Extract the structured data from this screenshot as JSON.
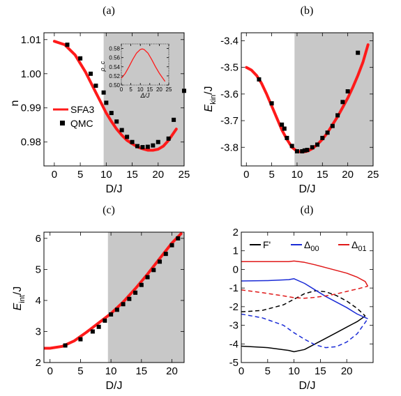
{
  "colors": {
    "sfa3": "#ff1a1a",
    "qmc": "#000000",
    "shade": "#c8c8c8",
    "F": "#000000",
    "D00": "#1a2bd6",
    "D01": "#e01818"
  },
  "chart_data": [
    {
      "panel": "(a)",
      "type": "line",
      "xlabel": "D/J",
      "ylabel": "n",
      "xlim": [
        -2,
        25
      ],
      "ylim": [
        0.973,
        1.012
      ],
      "xticks": [
        0,
        5,
        10,
        15,
        20,
        25
      ],
      "yticks": [
        0.98,
        0.99,
        1.0,
        1.01
      ],
      "ytick_labels": [
        "0.98",
        "0.99",
        "1.00",
        "1.01"
      ],
      "shaded_from_x": 9.5,
      "legend": {
        "position": "left",
        "entries": [
          "SFA3",
          "QMC"
        ]
      },
      "series": [
        {
          "name": "SFA3",
          "style": "line",
          "x": [
            0,
            2,
            4,
            6,
            8,
            9,
            10,
            11,
            12,
            13,
            14,
            15,
            16,
            17,
            18,
            19,
            20,
            21,
            22,
            23.5
          ],
          "y": [
            1.0095,
            1.0085,
            1.0055,
            1.0005,
            0.9945,
            0.9915,
            0.9885,
            0.986,
            0.9838,
            0.982,
            0.9805,
            0.9795,
            0.9786,
            0.978,
            0.9776,
            0.9776,
            0.9779,
            0.9788,
            0.9805,
            0.9838
          ]
        },
        {
          "name": "QMC",
          "style": "markers",
          "x": [
            2.5,
            5,
            7,
            8,
            9.5,
            10,
            11,
            12,
            13,
            14,
            15,
            16,
            17,
            18,
            19,
            20,
            22,
            23,
            25
          ],
          "y": [
            1.0085,
            1.0045,
            1.0,
            0.9965,
            0.9945,
            0.9915,
            0.9885,
            0.986,
            0.9835,
            0.9815,
            0.98,
            0.9788,
            0.9785,
            0.9786,
            0.979,
            0.98,
            0.981,
            0.9865,
            0.995
          ]
        }
      ],
      "inset": {
        "type": "line",
        "xlabel": "Δ/J",
        "ylabel": "ρ_c",
        "xlim": [
          0,
          25
        ],
        "ylim": [
          0.5,
          0.59
        ],
        "xticks": [
          0,
          5,
          10,
          15,
          20,
          25
        ],
        "yticks": [
          0.5,
          0.52,
          0.54,
          0.56,
          0.58
        ],
        "ytick_labels": [
          "0.50",
          "0.52",
          "0.54",
          "0.56",
          "0.58"
        ],
        "series": [
          {
            "x": [
              0,
              2,
              4,
              6,
              8,
              10,
              11,
              12,
              14,
              16,
              18,
              20,
              22,
              23
            ],
            "y": [
              0.515,
              0.525,
              0.54,
              0.556,
              0.57,
              0.578,
              0.579,
              0.578,
              0.57,
              0.556,
              0.54,
              0.526,
              0.514,
              0.508
            ]
          }
        ]
      }
    },
    {
      "panel": "(b)",
      "type": "line",
      "xlabel": "D/J",
      "ylabel_main": "E",
      "ylabel_sub": "kin",
      "ylabel_tail": "/J",
      "xlim": [
        -1,
        25
      ],
      "ylim": [
        -3.87,
        -3.37
      ],
      "xticks": [
        0,
        5,
        10,
        15,
        20,
        25
      ],
      "yticks": [
        -3.8,
        -3.7,
        -3.6,
        -3.5,
        -3.4
      ],
      "ytick_labels": [
        "-3.8",
        "-3.7",
        "-3.6",
        "-3.5",
        "-3.4"
      ],
      "shaded_from_x": 9.5,
      "series": [
        {
          "name": "SFA3",
          "style": "line",
          "x": [
            0,
            1,
            2,
            3,
            4,
            5,
            6,
            7,
            8,
            9,
            10,
            11,
            12,
            13,
            14,
            15,
            16,
            17,
            18,
            19,
            20,
            21,
            22,
            23,
            24
          ],
          "y": [
            -3.5,
            -3.51,
            -3.53,
            -3.56,
            -3.6,
            -3.645,
            -3.69,
            -3.735,
            -3.77,
            -3.8,
            -3.815,
            -3.818,
            -3.815,
            -3.805,
            -3.79,
            -3.77,
            -3.745,
            -3.715,
            -3.685,
            -3.65,
            -3.615,
            -3.575,
            -3.53,
            -3.48,
            -3.415
          ]
        },
        {
          "name": "QMC",
          "style": "markers",
          "x": [
            2.5,
            5,
            7,
            7.5,
            8,
            9,
            10,
            11,
            11.5,
            12,
            13,
            14,
            15,
            16,
            17,
            18,
            19,
            20,
            22
          ],
          "y": [
            -3.545,
            -3.635,
            -3.715,
            -3.73,
            -3.765,
            -3.795,
            -3.815,
            -3.815,
            -3.812,
            -3.81,
            -3.8,
            -3.79,
            -3.765,
            -3.745,
            -3.72,
            -3.68,
            -3.63,
            -3.59,
            -3.445
          ]
        }
      ]
    },
    {
      "panel": "(c)",
      "type": "line",
      "xlabel": "D/J",
      "ylabel_main": "E",
      "ylabel_sub": "int",
      "ylabel_tail": "/J",
      "xlim": [
        -1,
        22
      ],
      "ylim": [
        2.0,
        6.2
      ],
      "xticks": [
        0,
        5,
        10,
        15,
        20
      ],
      "yticks": [
        2,
        3,
        4,
        5,
        6
      ],
      "ytick_labels": [
        "2",
        "3",
        "4",
        "5",
        "6"
      ],
      "shaded_from_x": 9.5,
      "series": [
        {
          "name": "SFA3",
          "style": "line",
          "x": [
            -1,
            0,
            2,
            4,
            6,
            8,
            10,
            12,
            14,
            16,
            18,
            20,
            21.5
          ],
          "y": [
            2.46,
            2.46,
            2.52,
            2.7,
            2.98,
            3.28,
            3.58,
            3.95,
            4.38,
            4.85,
            5.35,
            5.85,
            6.15
          ]
        },
        {
          "name": "QMC",
          "style": "markers",
          "x": [
            2.5,
            5,
            7,
            8,
            9,
            10,
            11,
            12,
            13,
            14,
            15,
            16,
            17,
            18,
            19,
            20,
            21
          ],
          "y": [
            2.55,
            2.75,
            3.0,
            3.15,
            3.35,
            3.55,
            3.7,
            3.88,
            4.05,
            4.25,
            4.5,
            4.75,
            4.98,
            5.25,
            5.5,
            5.78,
            6.0
          ]
        }
      ]
    },
    {
      "panel": "(d)",
      "type": "line",
      "xlabel": "D/J",
      "xlim": [
        0,
        25
      ],
      "ylim": [
        -5,
        2
      ],
      "xticks": [
        0,
        5,
        10,
        15,
        20
      ],
      "yticks": [
        -5,
        -4,
        -3,
        -2,
        -1,
        0,
        1,
        2
      ],
      "ytick_labels": [
        "-5",
        "-4",
        "-3",
        "-2",
        "-1",
        "0",
        "1",
        "2"
      ],
      "legend": {
        "position": "top",
        "entries": [
          "F'",
          "Δ",
          "Δ"
        ],
        "subs": [
          "",
          "00",
          "01"
        ]
      },
      "series": [
        {
          "name": "F'",
          "branch": "solid",
          "x": [
            0,
            5,
            9,
            10,
            12,
            14,
            16,
            18,
            20,
            22,
            23.5
          ],
          "y": [
            -4.12,
            -4.2,
            -4.35,
            -4.42,
            -4.3,
            -4.0,
            -3.7,
            -3.4,
            -3.1,
            -2.8,
            -2.5
          ]
        },
        {
          "name": "F'",
          "branch": "dashed",
          "x": [
            0,
            4,
            8,
            10,
            12,
            14,
            16,
            18,
            20,
            22,
            23.5
          ],
          "y": [
            -2.28,
            -2.2,
            -1.9,
            -1.6,
            -1.3,
            -1.15,
            -1.2,
            -1.4,
            -1.7,
            -2.1,
            -2.5
          ]
        },
        {
          "name": "Δ00",
          "branch": "solid",
          "x": [
            0,
            5,
            9,
            10,
            12,
            14,
            16,
            18,
            20,
            22,
            24
          ],
          "y": [
            -0.62,
            -0.6,
            -0.55,
            -0.5,
            -0.75,
            -1.1,
            -1.45,
            -1.75,
            -2.05,
            -2.4,
            -2.65
          ]
        },
        {
          "name": "Δ00",
          "branch": "dashed",
          "x": [
            0,
            4,
            8,
            10,
            12,
            14,
            16,
            18,
            20,
            22,
            24
          ],
          "y": [
            -2.4,
            -2.6,
            -3.0,
            -3.4,
            -3.75,
            -4.05,
            -4.2,
            -4.15,
            -3.9,
            -3.45,
            -2.65
          ]
        },
        {
          "name": "Δ01",
          "branch": "solid",
          "x": [
            0,
            5,
            9,
            10,
            12,
            14,
            16,
            18,
            20,
            22,
            23.5,
            24
          ],
          "y": [
            0.42,
            0.42,
            0.42,
            0.45,
            0.38,
            0.25,
            0.1,
            -0.05,
            -0.2,
            -0.42,
            -0.65,
            -0.9
          ]
        },
        {
          "name": "Δ01",
          "branch": "dashed",
          "x": [
            0,
            4,
            8,
            10,
            12,
            14,
            16,
            18,
            20,
            22,
            24
          ],
          "y": [
            -1.1,
            -1.25,
            -1.42,
            -1.52,
            -1.55,
            -1.5,
            -1.42,
            -1.32,
            -1.18,
            -1.05,
            -0.9
          ]
        }
      ]
    }
  ]
}
